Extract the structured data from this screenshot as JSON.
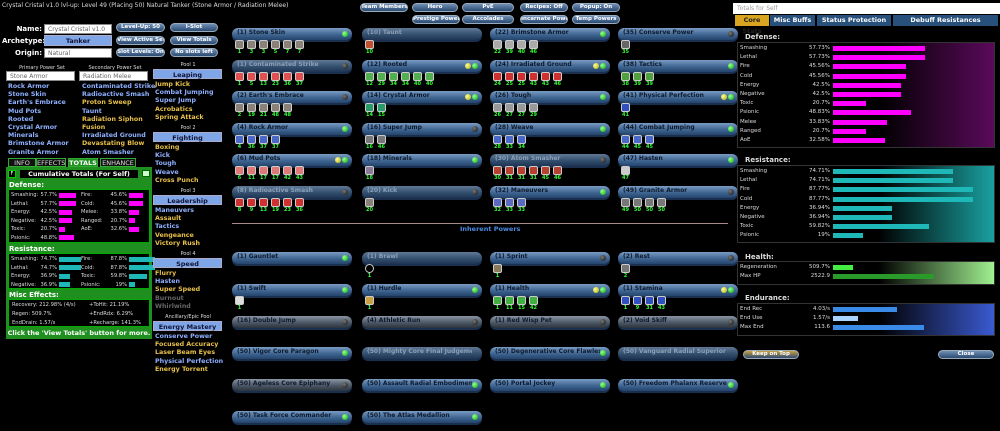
{
  "window_title": "Crystal Cristal v1.0 lvl-up: Level 49 (Placing 50) Natural Tanker (Stone Armor / Radiation Melee)",
  "build": {
    "name_label": "Name:",
    "name_value": "Crystal Cristal v1.0 lvl-up",
    "archetype_label": "Archetype:",
    "archetype_value": "Tanker",
    "origin_label": "Origin:",
    "origin_value": "Natural"
  },
  "buttons": {
    "level_up": "Level-Up: 50",
    "i_slot": "I-Slot",
    "view_active_sets": "View Active Sets",
    "view_totals": "View Totals",
    "slot_levels": "Slot Levels: On",
    "no_slots": "No slots left"
  },
  "top_buttons": [
    "Team Members",
    "Hero",
    "PvE",
    "Recipes: Off",
    "Popup: On",
    "Prestige Powers",
    "Accolades",
    "Incarnate Powers",
    "Temp Powers"
  ],
  "primary": {
    "header": "Primary Power Set",
    "set": "Stone Armor",
    "powers": [
      [
        "Rock Armor",
        "blue"
      ],
      [
        "Stone Skin",
        "blue"
      ],
      [
        "Earth's Embrace",
        "blue"
      ],
      [
        "Mud Pots",
        "blue"
      ],
      [
        "Rooted",
        "blue"
      ],
      [
        "Crystal Armor",
        "blue"
      ],
      [
        "Minerals",
        "blue"
      ],
      [
        "Brimstone Armor",
        "blue"
      ],
      [
        "Granite Armor",
        "blue"
      ]
    ]
  },
  "secondary": {
    "header": "Secondary Power Set",
    "set": "Radiation Melee",
    "powers": [
      [
        "Contaminated Strike",
        "blue"
      ],
      [
        "Radioactive Smash",
        "blue"
      ],
      [
        "Proton Sweep",
        "gold"
      ],
      [
        "Taunt",
        "blue"
      ],
      [
        "Radiation Siphon",
        "gold"
      ],
      [
        "Fusion",
        "gold"
      ],
      [
        "Irradiated Ground",
        "blue"
      ],
      [
        "Devastating Blow",
        "gold"
      ],
      [
        "Atom Smasher",
        "blue"
      ]
    ]
  },
  "pools": [
    {
      "header": "Pool 1",
      "name": "Leaping",
      "powers": [
        [
          "Jump Kick",
          "gold"
        ],
        [
          "Combat Jumping",
          "blue"
        ],
        [
          "Super Jump",
          "blue"
        ],
        [
          "Acrobatics",
          "gold"
        ],
        [
          "Spring Attack",
          "gold"
        ]
      ]
    },
    {
      "header": "Pool 2",
      "name": "Fighting",
      "powers": [
        [
          "Boxing",
          "gold"
        ],
        [
          "Kick",
          "blue"
        ],
        [
          "Tough",
          "blue"
        ],
        [
          "Weave",
          "blue"
        ],
        [
          "Cross Punch",
          "gold"
        ]
      ]
    },
    {
      "header": "Pool 3",
      "name": "Leadership",
      "powers": [
        [
          "Maneuvers",
          "blue"
        ],
        [
          "Assault",
          "gold"
        ],
        [
          "Tactics",
          "blue"
        ],
        [
          "Vengeance",
          "gold"
        ],
        [
          "Victory Rush",
          "gold"
        ]
      ]
    },
    {
      "header": "Pool 4",
      "name": "Speed",
      "powers": [
        [
          "Flurry",
          "gold"
        ],
        [
          "Hasten",
          "blue"
        ],
        [
          "Super Speed",
          "gold"
        ],
        [
          "Burnout",
          "gray"
        ],
        [
          "Whirlwind",
          "gray"
        ]
      ]
    },
    {
      "header": "Ancillary/Epic Pool",
      "name": "Energy Mastery",
      "powers": [
        [
          "Conserve Power",
          "blue"
        ],
        [
          "Focused Accuracy",
          "gold"
        ],
        [
          "Laser Beam Eyes",
          "gold"
        ],
        [
          "Physical Perfection",
          "blue"
        ],
        [
          "Energy Torrent",
          "gold"
        ]
      ]
    }
  ],
  "info_tabs": [
    "INFO",
    "EFFECTS",
    "TOTALS",
    "ENHANCE"
  ],
  "totals": {
    "title": "Cumulative Totals (For Self)",
    "f_btn": "F",
    "defense_label": "Defense:",
    "defense": [
      [
        "Smashing:",
        "57.7%",
        57.7
      ],
      [
        "Lethal:",
        "57.7%",
        57.7
      ],
      [
        "Energy:",
        "42.5%",
        42.5
      ],
      [
        "Negative:",
        "42.5%",
        42.5
      ],
      [
        "Toxic:",
        "20.7%",
        20.7
      ],
      [
        "Psionic:",
        "48.8%",
        48.8
      ],
      [
        "Fire:",
        "45.6%",
        45.6
      ],
      [
        "Cold:",
        "45.6%",
        45.6
      ],
      [
        "Melee:",
        "33.8%",
        33.8
      ],
      [
        "Ranged:",
        "20.7%",
        20.7
      ],
      [
        "AoE:",
        "32.6%",
        32.6
      ]
    ],
    "resistance_label": "Resistance:",
    "resistance": [
      [
        "Smashing:",
        "74.7%",
        74.7
      ],
      [
        "Lethal:",
        "74.7%",
        74.7
      ],
      [
        "Energy:",
        "36.9%",
        36.9
      ],
      [
        "Negative:",
        "36.9%",
        36.9
      ],
      [
        "Fire:",
        "87.8%",
        87.8
      ],
      [
        "Cold:",
        "87.8%",
        87.8
      ],
      [
        "Toxic:",
        "59.8%",
        59.8
      ],
      [
        "Psionic:",
        "19%",
        19
      ]
    ],
    "misc_label": "Misc Effects:",
    "misc": [
      "Recovery: 212.98% (4/s)",
      "+ToHit: 21.19%",
      "Regen: 509.7%",
      "+EndRdx: 6.29%",
      "EndDrain: 1.57/s",
      "+Recharge: 141.3%"
    ],
    "footer": "Click the 'View Totals' button for more."
  },
  "inherent_label": "Inherent Powers",
  "powers": [
    {
      "name": "(1) Stone Skin",
      "state": "on",
      "dots": "g",
      "color": "#8a8178",
      "slots": [
        1,
        3,
        3,
        5,
        7,
        7
      ]
    },
    {
      "name": "(1) Contaminated Strike",
      "state": "dim",
      "dots": "k",
      "color": "#e05050",
      "slots": [
        1,
        5,
        13,
        23,
        36,
        37
      ]
    },
    {
      "name": "(2) Earth's Embrace",
      "state": "on",
      "dots": "k",
      "color": "#8a8178",
      "slots": [
        2,
        19,
        21,
        48,
        48
      ]
    },
    {
      "name": "(4) Rock Armor",
      "state": "on",
      "dots": "g",
      "color": "#4a68c8",
      "slots": [
        4,
        36,
        37,
        37
      ]
    },
    {
      "name": "(6) Mud Pots",
      "state": "on",
      "dots": "yg",
      "color": "#e07878",
      "slots": [
        6,
        11,
        17,
        17,
        42,
        43
      ]
    },
    {
      "name": "(8) Radioactive Smash",
      "state": "dim",
      "dots": "k",
      "color": "#d03030",
      "slots": [
        8,
        9,
        13,
        19,
        23,
        36
      ]
    },
    {
      "name": "(10) Taunt",
      "state": "dim",
      "dots": "",
      "color": "#c05030",
      "slots": [
        10
      ]
    },
    {
      "name": "(12) Rooted",
      "state": "on",
      "dots": "yg",
      "color": "#50b050",
      "slots": [
        12,
        29,
        34,
        34,
        40,
        40
      ]
    },
    {
      "name": "(14) Crystal Armor",
      "state": "on",
      "dots": "yg",
      "color": "#2a9a6a",
      "slots": [
        14,
        15
      ]
    },
    {
      "name": "(16) Super Jump",
      "state": "on",
      "dots": "k",
      "color": "#777",
      "slots": [
        16,
        46
      ]
    },
    {
      "name": "(18) Minerals",
      "state": "on",
      "dots": "g",
      "color": "#8a7a9a",
      "slots": [
        18
      ]
    },
    {
      "name": "(20) Kick",
      "state": "dim",
      "dots": "k",
      "color": "#8a8178",
      "slots": [
        20
      ]
    },
    {
      "name": "(22) Brimstone Armor",
      "state": "on",
      "dots": "g",
      "color": "#aaa",
      "slots": [
        22,
        39,
        40,
        46
      ]
    },
    {
      "name": "(24) Irradiated Ground",
      "state": "on",
      "dots": "yg",
      "color": "#d03030",
      "slots": [
        24,
        25,
        25,
        43,
        43,
        46
      ]
    },
    {
      "name": "(26) Tough",
      "state": "on",
      "dots": "g",
      "color": "#999",
      "slots": [
        26,
        27,
        27,
        29
      ]
    },
    {
      "name": "(28) Weave",
      "state": "on",
      "dots": "g",
      "color": "#4a68c8",
      "slots": [
        28,
        33,
        34
      ]
    },
    {
      "name": "(30) Atom Smasher",
      "state": "dim",
      "dots": "k",
      "color": "#b84030",
      "slots": [
        30,
        31,
        31,
        31,
        45,
        46
      ]
    },
    {
      "name": "(32) Maneuvers",
      "state": "on",
      "dots": "g",
      "color": "#5a6ac0",
      "slots": [
        32,
        33,
        33
      ]
    },
    {
      "name": "(35) Conserve Power",
      "state": "on",
      "dots": "k",
      "color": "#666",
      "slots": [
        35
      ]
    },
    {
      "name": "(38) Tactics",
      "state": "on",
      "dots": "g",
      "color": "#50a040",
      "slots": [
        38,
        39,
        39
      ]
    },
    {
      "name": "(41) Physical Perfection",
      "state": "on",
      "dots": "yg",
      "color": "#3050c0",
      "slots": [
        41
      ]
    },
    {
      "name": "(44) Combat Jumping",
      "state": "on",
      "dots": "g",
      "color": "#4a68c8",
      "slots": [
        44,
        45,
        45
      ]
    },
    {
      "name": "(47) Hasten",
      "state": "on",
      "dots": "g",
      "color": "#ccc",
      "slots": [
        47
      ]
    },
    {
      "name": "(49) Granite Armor",
      "state": "on",
      "dots": "k",
      "color": "#777",
      "slots": [
        49,
        50,
        50,
        50
      ]
    }
  ],
  "inherent": [
    {
      "name": "(1) Gauntlet",
      "state": "on",
      "dots": "g",
      "color": "",
      "slots": []
    },
    {
      "name": "(1) Brawl",
      "state": "dim",
      "dots": "",
      "color": "#000",
      "slots": [
        1
      ]
    },
    {
      "name": "(1) Sprint",
      "state": "on",
      "dots": "k",
      "color": "#8a7a5a",
      "slots": [
        1
      ]
    },
    {
      "name": "(2) Rest",
      "state": "on",
      "dots": "k",
      "color": "#777",
      "slots": [
        2
      ]
    },
    {
      "name": "(1) Swift",
      "state": "on",
      "dots": "g",
      "color": "#ddd",
      "slots": [
        1
      ]
    },
    {
      "name": "(1) Hurdle",
      "state": "on",
      "dots": "g",
      "color": "#c9a040",
      "slots": [
        1
      ]
    },
    {
      "name": "(1) Health",
      "state": "on",
      "dots": "yg",
      "color": "#40b040",
      "slots": [
        1,
        11,
        15,
        42
      ]
    },
    {
      "name": "(1) Stamina",
      "state": "on",
      "dots": "yg",
      "color": "#3050c0",
      "slots": [
        1,
        9,
        31,
        43
      ]
    },
    {
      "name": "(16) Double Jump",
      "state": "dark",
      "dots": "k",
      "color": "",
      "slots": []
    },
    {
      "name": "(4) Athletic Run",
      "state": "dark",
      "dots": "k",
      "color": "",
      "slots": []
    },
    {
      "name": "(1) Red Wisp Pet",
      "state": "dark",
      "dots": "k",
      "color": "",
      "slots": []
    },
    {
      "name": "(2) Void Skiff",
      "state": "dark",
      "dots": "k",
      "color": "",
      "slots": []
    },
    {
      "name": "(50) Vigor Core Paragon",
      "state": "on",
      "dots": "g",
      "color": "",
      "slots": []
    },
    {
      "name": "(50) Mighty Core Final Judgement",
      "state": "dim",
      "dots": "",
      "color": "",
      "slots": []
    },
    {
      "name": "(50) Degenerative Core Flawless Invocation",
      "state": "on",
      "dots": "g",
      "color": "",
      "slots": []
    },
    {
      "name": "(50) Vanguard Radial Superior Ally",
      "state": "dim",
      "dots": "",
      "color": "",
      "slots": []
    },
    {
      "name": "(50) Ageless Core Epiphany",
      "state": "dark",
      "dots": "k",
      "color": "",
      "slots": []
    },
    {
      "name": "(50) Assault Radial Embodiment",
      "state": "on",
      "dots": "g",
      "color": "",
      "slots": []
    },
    {
      "name": "(50) Portal Jockey",
      "state": "on",
      "dots": "g",
      "color": "",
      "slots": []
    },
    {
      "name": "(50) Freedom Phalanx Reserve",
      "state": "on",
      "dots": "g",
      "color": "",
      "slots": []
    },
    {
      "name": "(50) Task Force Commander",
      "state": "on",
      "dots": "g",
      "color": "",
      "slots": []
    },
    {
      "name": "(50) The Atlas Medallion",
      "state": "on",
      "dots": "g",
      "color": "",
      "slots": []
    }
  ],
  "right_panel": {
    "title": "Totals for Self",
    "tabs": [
      "Core Stats",
      "Misc Buffs",
      "Status Protection",
      "Debuff Resistances"
    ],
    "defense_label": "Defense:",
    "defense": [
      [
        "Smashing",
        "57.73%",
        57.73
      ],
      [
        "Lethal",
        "57.73%",
        57.73
      ],
      [
        "Fire",
        "45.56%",
        45.56
      ],
      [
        "Cold",
        "45.56%",
        45.56
      ],
      [
        "Energy",
        "42.5%",
        42.5
      ],
      [
        "Negative",
        "42.5%",
        42.5
      ],
      [
        "Toxic",
        "20.7%",
        20.7
      ],
      [
        "Psionic",
        "48.83%",
        48.83
      ],
      [
        "Melee",
        "33.83%",
        33.83
      ],
      [
        "Ranged",
        "20.7%",
        20.7
      ],
      [
        "AoE",
        "32.58%",
        32.58
      ]
    ],
    "resistance_label": "Resistance:",
    "resistance": [
      [
        "Smashing",
        "74.71%",
        74.71
      ],
      [
        "Lethal",
        "74.71%",
        74.71
      ],
      [
        "Fire",
        "87.77%",
        87.77
      ],
      [
        "Cold",
        "87.77%",
        87.77
      ],
      [
        "Energy",
        "36.94%",
        36.94
      ],
      [
        "Negative",
        "36.94%",
        36.94
      ],
      [
        "Toxic",
        "59.82%",
        59.82
      ],
      [
        "Psionic",
        "19%",
        19
      ]
    ],
    "health_label": "Health:",
    "health": [
      [
        "Regeneration",
        "509.7%",
        509.7
      ],
      [
        "Max HP",
        "2522.9",
        2522.9
      ]
    ],
    "endurance_label": "Endurance:",
    "endurance": [
      [
        "End Rec",
        "4.03/s",
        4.03
      ],
      [
        "End Use",
        "1.57/s",
        1.57
      ],
      [
        "Max End",
        "113.6",
        113.6
      ]
    ],
    "keep_on_top": "Keep on Top",
    "close": "Close"
  },
  "colors": {
    "defense": "#ff00ff",
    "resistance": "#1fb8b8",
    "health": "#3c3",
    "endurance": "#3a8ae8",
    "panel_green": "#1f8f1f"
  }
}
